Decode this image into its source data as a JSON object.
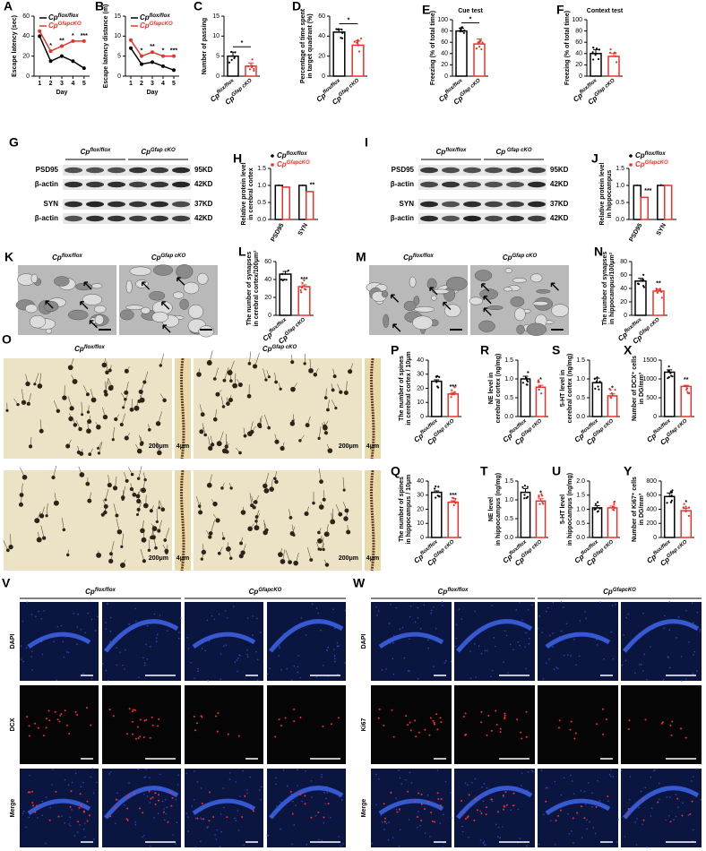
{
  "chart_data": [
    {
      "panel": "A",
      "type": "line",
      "ylabel": [
        "Escape latency (sec)"
      ],
      "xlabel": "Day",
      "x": [
        1,
        2,
        3,
        4,
        5
      ],
      "xlim": [
        0.5,
        5.5
      ],
      "xticks": [
        1,
        2,
        3,
        4,
        5
      ],
      "ylim": [
        0,
        60
      ],
      "yticks": [
        0,
        20,
        40,
        60
      ],
      "series": [
        {
          "name": "Cpflox/flox",
          "color": "#000000",
          "values": [
            40,
            15,
            20,
            15,
            8
          ]
        },
        {
          "name": "CpGfapcKO",
          "color": "#e8332a",
          "values": [
            45,
            25,
            30,
            35,
            35
          ]
        }
      ],
      "annotations": [
        {
          "x": 2,
          "text": "*"
        },
        {
          "x": 3,
          "text": "**"
        },
        {
          "x": 4,
          "text": "*"
        },
        {
          "x": 5,
          "text": "***"
        }
      ]
    },
    {
      "panel": "B",
      "type": "line",
      "ylabel": [
        "Escape latency distance (m)"
      ],
      "xlabel": "Day",
      "x": [
        1,
        2,
        3,
        4,
        5
      ],
      "xlim": [
        0.5,
        5.5
      ],
      "xticks": [
        1,
        2,
        3,
        4,
        5
      ],
      "ylim": [
        0,
        15
      ],
      "yticks": [
        0,
        5,
        10,
        15
      ],
      "series": [
        {
          "name": "Cpflox/flox",
          "color": "#000000",
          "values": [
            7,
            3,
            3.5,
            2.5,
            1.5
          ]
        },
        {
          "name": "CpGfapcKO",
          "color": "#e8332a",
          "values": [
            9,
            5,
            6,
            5,
            5
          ]
        }
      ],
      "annotations": [
        {
          "x": 2,
          "text": "*"
        },
        {
          "x": 3,
          "text": "**"
        },
        {
          "x": 4,
          "text": "*"
        },
        {
          "x": 5,
          "text": "***"
        }
      ]
    },
    {
      "panel": "C",
      "type": "bar",
      "ylabel": [
        "Number of passing"
      ],
      "categories": [
        "Cpflox/flox",
        "CpGfap cKO"
      ],
      "colors": [
        "#000000",
        "#e8332a"
      ],
      "values": [
        5,
        2.5
      ],
      "errors": [
        1,
        0.8
      ],
      "ylim": [
        0,
        15
      ],
      "yticks": [
        0,
        5,
        10,
        15
      ],
      "annotation": "*",
      "bracket": true
    },
    {
      "panel": "D",
      "type": "bar",
      "ylabel": [
        "Percentage of time spent",
        "in target quadrant (%)"
      ],
      "categories": [
        "Cpflox/flox",
        "CpGfap cKO"
      ],
      "colors": [
        "#000000",
        "#e8332a"
      ],
      "values": [
        44,
        31
      ],
      "errors": [
        3,
        4
      ],
      "ylim": [
        0,
        60
      ],
      "yticks": [
        0,
        20,
        40,
        60
      ],
      "annotation": "*",
      "bracket": true
    },
    {
      "panel": "E",
      "type": "bar",
      "title": "Cue test",
      "ylabel": [
        "Freezing (% of total time)"
      ],
      "categories": [
        "Cpflox/flox",
        "CpGfap cKO"
      ],
      "colors": [
        "#000000",
        "#e8332a"
      ],
      "values": [
        80,
        57
      ],
      "errors": [
        5,
        9
      ],
      "ylim": [
        0,
        100
      ],
      "yticks": [
        0,
        20,
        40,
        60,
        80,
        100
      ],
      "annotation": "*",
      "bracket": true
    },
    {
      "panel": "F",
      "type": "bar",
      "title": "Context test",
      "ylabel": [
        "Freezing (% of total time)"
      ],
      "categories": [
        "Cpflox/flox",
        "CpGfap cKO"
      ],
      "colors": [
        "#000000",
        "#e8332a"
      ],
      "values": [
        40,
        35
      ],
      "errors": [
        7,
        5
      ],
      "ylim": [
        0,
        100
      ],
      "yticks": [
        0,
        20,
        40,
        60,
        80,
        100
      ]
    },
    {
      "panel": "H",
      "type": "grouped",
      "ylabel": [
        "Relative protein level",
        "in cerebral cortex"
      ],
      "categories": [
        "PSD95",
        "SYN"
      ],
      "ylim": [
        0,
        1.5
      ],
      "yticks": [
        {
          "value": 0,
          "label": "0.0"
        },
        0.5,
        {
          "value": 1,
          "label": "1.0"
        },
        1.5
      ],
      "series": [
        {
          "name": "Cpflox/flox",
          "color": "#000000",
          "values": [
            1.0,
            1.0
          ],
          "errors": [
            0.03,
            0.03
          ]
        },
        {
          "name": "CpGfapcKO",
          "color": "#e8332a",
          "values": [
            0.95,
            0.82
          ],
          "errors": [
            0.03,
            0.02
          ]
        }
      ],
      "annotations": [
        {
          "category": "SYN",
          "text": "**"
        }
      ]
    },
    {
      "panel": "J",
      "type": "grouped",
      "ylabel": [
        "Relative protein level",
        "in hippocampus"
      ],
      "categories": [
        "PSD95",
        "SYN"
      ],
      "ylim": [
        0,
        1.5
      ],
      "yticks": [
        {
          "value": 0,
          "label": "0.0"
        },
        0.5,
        {
          "value": 1,
          "label": "1.0"
        },
        1.5
      ],
      "series": [
        {
          "name": "Cpflox/flox",
          "color": "#000000",
          "values": [
            1.0,
            1.0
          ],
          "errors": [
            0.03,
            0.04
          ]
        },
        {
          "name": "CpGfapcKO",
          "color": "#e8332a",
          "values": [
            0.65,
            1.0
          ],
          "errors": [
            0.02,
            0.03
          ]
        }
      ],
      "annotations": [
        {
          "category": "PSD95",
          "text": "***"
        }
      ]
    },
    {
      "panel": "L",
      "type": "bar",
      "ylabel": [
        "The number of synapses",
        "in cerebral cortex/100μm²"
      ],
      "categories": [
        "Cpflox/flox",
        "CpGfap cKO"
      ],
      "colors": [
        "#000000",
        "#e8332a"
      ],
      "values": [
        46,
        32
      ],
      "errors": [
        3,
        2
      ],
      "ylim": [
        0,
        60
      ],
      "yticks": [
        0,
        20,
        40,
        60
      ],
      "annotation": "***"
    },
    {
      "panel": "N",
      "type": "bar",
      "ylabel": [
        "The number of synapses",
        "in hippocampus/100μm²"
      ],
      "categories": [
        "Cpflox/flox",
        "CpGfap cKO"
      ],
      "colors": [
        "#000000",
        "#e8332a"
      ],
      "values": [
        51,
        36
      ],
      "errors": [
        4,
        3
      ],
      "ylim": [
        0,
        80
      ],
      "yticks": [
        0,
        20,
        40,
        60,
        80
      ],
      "annotation": "**"
    },
    {
      "panel": "P",
      "type": "bar",
      "ylabel": [
        "The number of spines",
        "in cerebral cortex / 10μm"
      ],
      "categories": [
        "Cpflox/flox",
        "CpGfap cKO"
      ],
      "colors": [
        "#000000",
        "#e8332a"
      ],
      "values": [
        25,
        16
      ],
      "errors": [
        1,
        1
      ],
      "ylim": [
        0,
        40
      ],
      "yticks": [
        0,
        10,
        20,
        30,
        40
      ],
      "annotation": "***"
    },
    {
      "panel": "R",
      "type": "bar",
      "ylabel": [
        "NE level in",
        "cerebral cortex (ng/mg)"
      ],
      "categories": [
        "Cpflox/flox",
        "CpGfap cKO"
      ],
      "colors": [
        "#000000",
        "#e8332a"
      ],
      "values": [
        1.0,
        0.78
      ],
      "errors": [
        0.07,
        0.05
      ],
      "ylim": [
        0,
        1.5
      ],
      "yticks": [
        {
          "value": 0,
          "label": "0.0"
        },
        0.5,
        {
          "value": 1,
          "label": "1.0"
        },
        1.5
      ],
      "annotation": "*"
    },
    {
      "panel": "S",
      "type": "bar",
      "ylabel": [
        "5-HT level in",
        "cerebral cortex (ng/mg)"
      ],
      "categories": [
        "Cpflox/flox",
        "CpGfap cKO"
      ],
      "colors": [
        "#000000",
        "#e8332a"
      ],
      "values": [
        0.9,
        0.55
      ],
      "errors": [
        0.12,
        0.05
      ],
      "ylim": [
        0,
        1.5
      ],
      "yticks": [
        {
          "value": 0,
          "label": "0.0"
        },
        0.5,
        {
          "value": 1,
          "label": "1.0"
        },
        1.5
      ],
      "annotation": "*"
    },
    {
      "panel": "X",
      "type": "bar",
      "ylabel": [
        "Number of DCX⁺ cells",
        "in DG/mm³"
      ],
      "categories": [
        "Cpflox/flox",
        "CpGfap cKO"
      ],
      "colors": [
        "#000000",
        "#e8332a"
      ],
      "values": [
        1180,
        800
      ],
      "errors": [
        60,
        30
      ],
      "ylim": [
        0,
        1500
      ],
      "yticks": [
        0,
        500,
        1000,
        1500
      ],
      "annotation": "**"
    },
    {
      "panel": "Q",
      "type": "bar",
      "ylabel": [
        "The number of spines",
        "in hippocampus / 10μm"
      ],
      "categories": [
        "Cpflox/flox",
        "CpGfap cKO"
      ],
      "colors": [
        "#000000",
        "#e8332a"
      ],
      "values": [
        32,
        25
      ],
      "errors": [
        1,
        1
      ],
      "ylim": [
        0,
        40
      ],
      "yticks": [
        0,
        10,
        20,
        30,
        40
      ],
      "annotation": "***"
    },
    {
      "panel": "T",
      "type": "bar",
      "ylabel": [
        "NE level",
        "in hippocampus (ng/mg)"
      ],
      "categories": [
        "Cpflox/flox",
        "CpGfap cKO"
      ],
      "colors": [
        "#000000",
        "#e8332a"
      ],
      "values": [
        1.2,
        0.97
      ],
      "errors": [
        0.1,
        0.06
      ],
      "ylim": [
        0,
        1.5
      ],
      "yticks": [
        {
          "value": 0,
          "label": "0.0"
        },
        0.5,
        {
          "value": 1,
          "label": "1.0"
        },
        1.5
      ],
      "annotation": "*"
    },
    {
      "panel": "U",
      "type": "bar",
      "ylabel": [
        "5-HT level",
        "in hippocampus (ng/mg)"
      ],
      "categories": [
        "Cpflox/flox",
        "CpGfap cKO"
      ],
      "colors": [
        "#000000",
        "#e8332a"
      ],
      "values": [
        1.05,
        1.05
      ],
      "errors": [
        0.08,
        0.06
      ],
      "ylim": [
        0,
        2
      ],
      "yticks": [
        {
          "value": 0,
          "label": "0.0"
        },
        0.5,
        {
          "value": 1,
          "label": "1.0"
        },
        1.5,
        {
          "value": 2,
          "label": "2.0"
        }
      ]
    },
    {
      "panel": "Y",
      "type": "bar",
      "ylabel": [
        "Number of Ki67⁺ cells",
        "in DG/mm³"
      ],
      "categories": [
        "Cpflox/flox",
        "CpGfap cKO"
      ],
      "colors": [
        "#000000",
        "#e8332a"
      ],
      "values": [
        580,
        380
      ],
      "errors": [
        50,
        35
      ],
      "ylim": [
        0,
        800
      ],
      "yticks": [
        0,
        200,
        400,
        600,
        800
      ],
      "annotation": "*"
    }
  ],
  "image_panels": [
    {
      "panel": "G",
      "groups": [
        "Cpflox/flox",
        "CpGfap cKO"
      ],
      "rows": [
        {
          "label": "PSD95",
          "size": "95KD"
        },
        {
          "label": "β-actin",
          "size": "42KD"
        },
        {
          "label": "SYN",
          "size": "37KD"
        },
        {
          "label": "β-actin",
          "size": "42KD"
        }
      ]
    },
    {
      "panel": "I",
      "groups": [
        "Cpflox/flox",
        "Cp Gfap cKO"
      ],
      "rows": [
        {
          "label": "PSD95",
          "size": "95KD"
        },
        {
          "label": "β-actin",
          "size": "42KD"
        },
        {
          "label": "SYN",
          "size": "37KD"
        },
        {
          "label": "β-actin",
          "size": "42KD"
        }
      ]
    },
    {
      "panel": "K",
      "groups": [
        "Cpflox/flox",
        "CpGfap cKO"
      ]
    },
    {
      "panel": "M",
      "groups": [
        "Cpflox/flox",
        "CpGfap cKO"
      ]
    },
    {
      "panel": "O",
      "groups": [
        "Cpflox/flox",
        "CpGfap cKO"
      ],
      "scale_bars": [
        "200μm",
        "4μm",
        "200μm",
        "4μm",
        "200μm",
        "4μm",
        "200μm",
        "4μm"
      ]
    },
    {
      "panel": "V",
      "groups": [
        "Cpflox/flox",
        "CpGfapcKO"
      ],
      "rows": [
        "DAPI",
        "DCX",
        "Merge"
      ]
    },
    {
      "panel": "W",
      "groups": [
        "Cpflox/flox",
        "CpGfapcKO"
      ],
      "rows": [
        "DAPI",
        "Ki67",
        "Merge"
      ]
    }
  ]
}
